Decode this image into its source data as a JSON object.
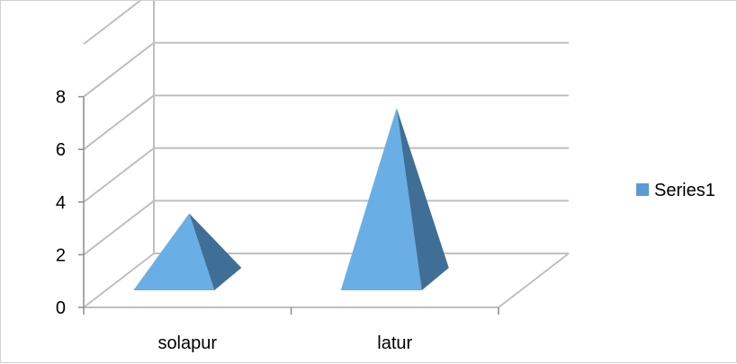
{
  "chart_data": {
    "type": "bar",
    "shape": "3d-pyramid",
    "categories": [
      "solapur",
      "latur"
    ],
    "series": [
      {
        "name": "Series1",
        "values": [
          3.5,
          7.5
        ]
      }
    ],
    "yticks": [
      "0",
      "2",
      "4",
      "6",
      "8"
    ],
    "ylim": [
      0,
      10
    ],
    "ymax_tick": 8,
    "grid": true,
    "legend": {
      "position": "right"
    },
    "colors": {
      "face_front": "#6aaee6",
      "face_side": "#3f6f96",
      "legend_swatch": "#5b9bd5",
      "grid": "#bfbfbf",
      "axis": "#8c8c8c"
    }
  }
}
